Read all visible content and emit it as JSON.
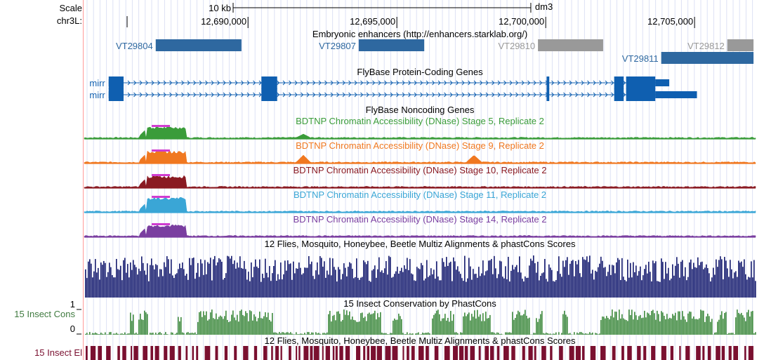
{
  "side_labels": {
    "scale": "Scale",
    "chrom": "chr3L:",
    "cons_track": "15 Insect Cons",
    "cons_max": "1",
    "cons_min": "0",
    "elements_track": "15 Insect El"
  },
  "ruler": {
    "scale_text": "10 kb",
    "assembly": "dm3",
    "ticks": [
      {
        "value": 12690000,
        "label": "12,690,000"
      },
      {
        "value": 12695000,
        "label": "12,695,000"
      },
      {
        "value": 12700000,
        "label": "12,700,000"
      },
      {
        "value": 12705000,
        "label": "12,705,000"
      }
    ],
    "view_start": 12684500,
    "view_end": 12707050,
    "scale_bar_start": 12689500,
    "scale_bar_end": 12699500
  },
  "tracks": {
    "enhancers": {
      "title": "Embryonic enhancers (http://enhancers.starklab.org/)",
      "title_color": "#000000",
      "items": [
        {
          "name": "VT29804",
          "start": 12686900,
          "end": 12689780,
          "color": "#2e68a0",
          "row": 0
        },
        {
          "name": "VT29807",
          "start": 12693720,
          "end": 12695920,
          "color": "#2e68a0",
          "row": 0
        },
        {
          "name": "VT29810",
          "start": 12699740,
          "end": 12701930,
          "color": "#999999",
          "row": 0
        },
        {
          "name": "VT29812",
          "start": 12706100,
          "end": 12706980,
          "color": "#999999",
          "row": 0
        },
        {
          "name": "VT29811",
          "start": 12703880,
          "end": 12706980,
          "color": "#2e68a0",
          "row": 1
        }
      ]
    },
    "genes": {
      "title": "FlyBase Protein-Coding Genes",
      "title_color": "#1a66b3",
      "color": "#0f5fb0",
      "transcripts": [
        {
          "name": "mirr",
          "exons": [
            [
              12685320,
              12685820
            ],
            [
              12690450,
              12690980
            ],
            [
              12700030,
              12700120
            ],
            [
              12702300,
              12702620
            ],
            [
              12702700,
              12703680
            ]
          ],
          "utr": [
            [
              12685320,
              12685820
            ],
            [
              12703680,
              12704150
            ]
          ]
        },
        {
          "name": "mirr",
          "exons": [
            [
              12685320,
              12685820
            ],
            [
              12690450,
              12690980
            ],
            [
              12700030,
              12700120
            ],
            [
              12702300,
              12702620
            ],
            [
              12702700,
              12703680
            ]
          ],
          "utr": [
            [
              12685320,
              12685820
            ],
            [
              12703680,
              12705080
            ]
          ]
        }
      ]
    },
    "noncoding": {
      "title": "FlyBase Noncoding Genes",
      "title_color": "#1f8fd1"
    },
    "dnase": [
      {
        "title": "BDTNP Chromatin Accessibility (DNase) Stage 5, Replicate 2",
        "color": "#3a9c3a"
      },
      {
        "title": "BDTNP Chromatin Accessibility (DNase) Stage 9, Replicate 2",
        "color": "#f07820"
      },
      {
        "title": "BDTNP Chromatin Accessibility (DNase) Stage 10, Replicate 2",
        "color": "#8a1a22"
      },
      {
        "title": "BDTNP Chromatin Accessibility (DNase) Stage 11, Replicate 2",
        "color": "#3aa6d6"
      },
      {
        "title": "BDTNP Chromatin Accessibility (DNase) Stage 14, Replicate 2",
        "color": "#7a3ea0"
      }
    ],
    "multiz": {
      "title": "12 Flies, Mosquito, Honeybee, Beetle Multiz Alignments & phastCons Scores",
      "color": "#141a6e"
    },
    "phastcons": {
      "title": "15 Insect Conservation by PhastCons",
      "color": "#3f8a3f"
    },
    "elements": {
      "title": "12 Flies, Mosquito, Honeybee, Beetle Multiz Alignments & phastCons Scores",
      "color": "#7a1030"
    }
  }
}
